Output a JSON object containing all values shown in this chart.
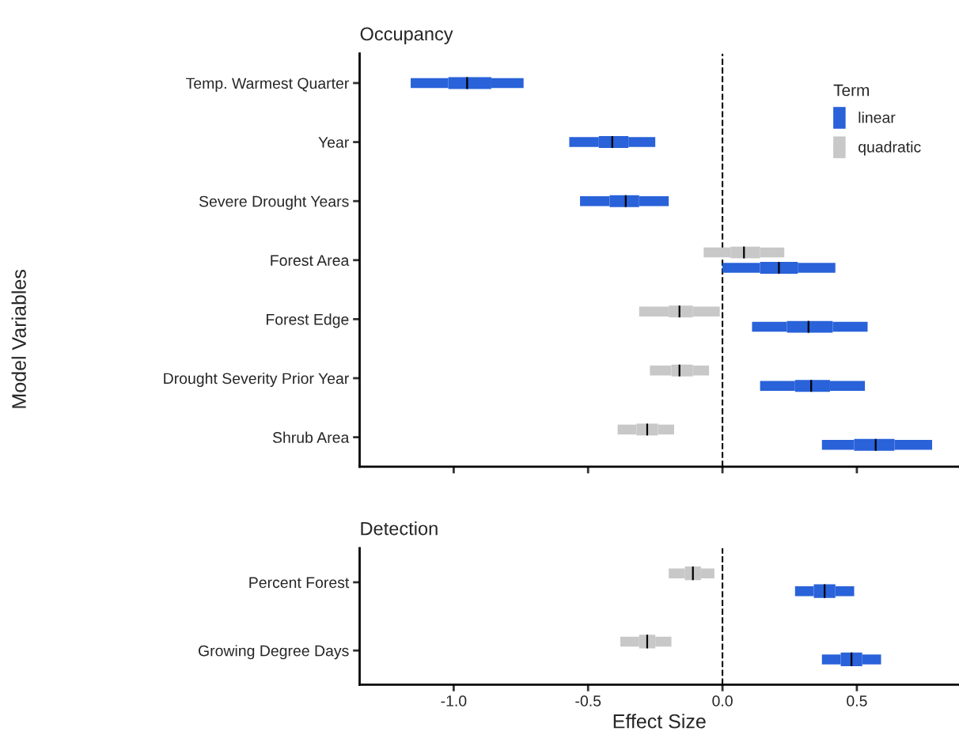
{
  "chart_data": [
    {
      "type": "box",
      "orientation": "horizontal",
      "title": "Occupancy",
      "ylabel": "Model Variables",
      "legend_title": "Term",
      "legend": "top right",
      "tick_labels": "y",
      "grid": false,
      "categories": [
        "Temp. Warmest Quarter",
        "Year",
        "Severe Drought Years",
        "Forest Area",
        "Forest Edge",
        "Drought Severity Prior Year",
        "Shrub Area"
      ],
      "xlim": [
        -1.35,
        0.88
      ],
      "xticks": [
        {
          "value": -1.0,
          "label": null
        },
        {
          "value": -0.5,
          "label": null
        },
        {
          "value": 0.0,
          "label": null
        },
        {
          "value": 0.5,
          "label": null
        }
      ],
      "ref_lines": [
        {
          "axis": "x",
          "value": 0,
          "line_style": "dashed",
          "color": "#000000"
        }
      ],
      "series": [
        {
          "name": "linear",
          "color": "#2962d9",
          "boxes": [
            {
              "low": -1.16,
              "q1": -1.02,
              "median": -0.95,
              "q3": -0.86,
              "high": -0.74
            },
            {
              "low": -0.57,
              "q1": -0.46,
              "median": -0.41,
              "q3": -0.35,
              "high": -0.25
            },
            {
              "low": -0.53,
              "q1": -0.42,
              "median": -0.36,
              "q3": -0.31,
              "high": -0.2
            },
            {
              "low": 0.0,
              "q1": 0.14,
              "median": 0.21,
              "q3": 0.28,
              "high": 0.42
            },
            {
              "low": 0.11,
              "q1": 0.24,
              "median": 0.32,
              "q3": 0.41,
              "high": 0.54
            },
            {
              "low": 0.14,
              "q1": 0.27,
              "median": 0.33,
              "q3": 0.4,
              "high": 0.53
            },
            {
              "low": 0.37,
              "q1": 0.49,
              "median": 0.57,
              "q3": 0.64,
              "high": 0.78
            }
          ]
        },
        {
          "name": "quadratic",
          "color": "#c8c8c8",
          "boxes": [
            null,
            null,
            null,
            {
              "low": -0.07,
              "q1": 0.03,
              "median": 0.08,
              "q3": 0.14,
              "high": 0.23
            },
            {
              "low": -0.31,
              "q1": -0.2,
              "median": -0.16,
              "q3": -0.11,
              "high": -0.01
            },
            {
              "low": -0.27,
              "q1": -0.19,
              "median": -0.16,
              "q3": -0.11,
              "high": -0.05
            },
            {
              "low": -0.39,
              "q1": -0.32,
              "median": -0.28,
              "q3": -0.24,
              "high": -0.18
            }
          ]
        }
      ]
    },
    {
      "type": "box",
      "orientation": "horizontal",
      "title": "Detection",
      "xlabel": "Effect Size",
      "grid": false,
      "categories": [
        "Percent Forest",
        "Growing Degree Days"
      ],
      "xlim": [
        -1.35,
        0.88
      ],
      "xticks": [
        {
          "value": -1.0,
          "label": "-1.0"
        },
        {
          "value": -0.5,
          "label": "-0.5"
        },
        {
          "value": 0.0,
          "label": "0.0"
        },
        {
          "value": 0.5,
          "label": "0.5"
        }
      ],
      "ref_lines": [
        {
          "axis": "x",
          "value": 0,
          "line_style": "dashed",
          "color": "#000000"
        }
      ],
      "series": [
        {
          "color": "#2962d9",
          "boxes": [
            {
              "low": 0.27,
              "q1": 0.34,
              "median": 0.38,
              "q3": 0.42,
              "high": 0.49
            },
            {
              "low": 0.37,
              "q1": 0.44,
              "median": 0.48,
              "q3": 0.52,
              "high": 0.59
            }
          ]
        },
        {
          "color": "#c8c8c8",
          "boxes": [
            {
              "low": -0.2,
              "q1": -0.14,
              "median": -0.11,
              "q3": -0.08,
              "high": -0.03
            },
            {
              "low": -0.38,
              "q1": -0.31,
              "median": -0.28,
              "q3": -0.25,
              "high": -0.19
            }
          ]
        }
      ]
    }
  ]
}
